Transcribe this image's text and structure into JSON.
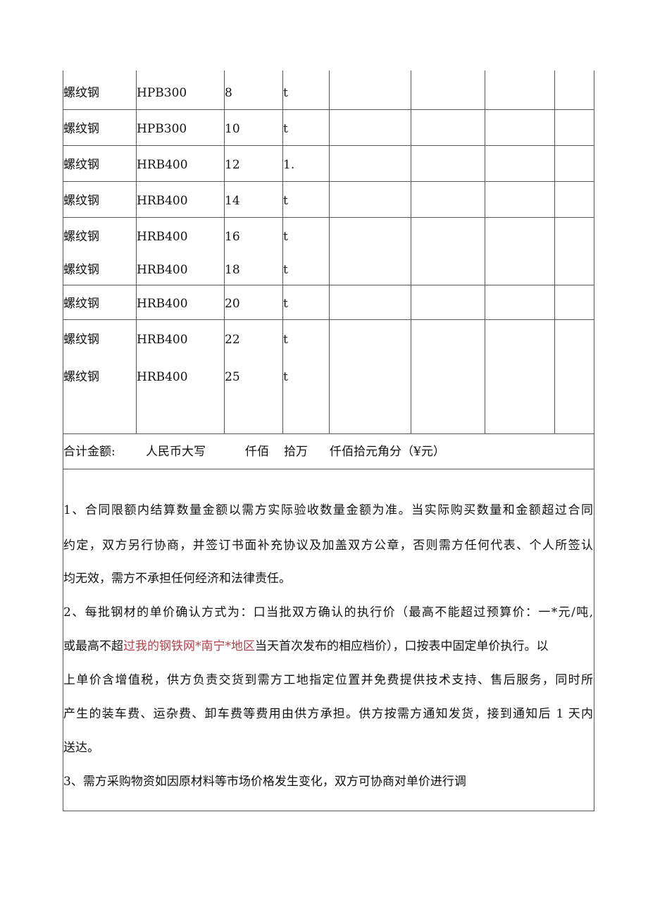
{
  "rows": [
    {
      "name": "螺纹钢",
      "grade": "HPB300",
      "spec": "8",
      "unit": "t"
    },
    {
      "name": "螺纹钢",
      "grade": "HPB300",
      "spec": "10",
      "unit": "t"
    },
    {
      "name": "螺纹钢",
      "grade": "HRB400",
      "spec": "12",
      "unit": "1."
    },
    {
      "name": "螺纹钢",
      "grade": "HRB400",
      "spec": "14",
      "unit": "t"
    },
    {
      "name": "螺纹钢",
      "grade": "HRB400",
      "spec": "16",
      "unit": "t"
    },
    {
      "name": "螺纹钢",
      "grade": "HRB400",
      "spec": "18",
      "unit": "t"
    },
    {
      "name": "螺纹钢",
      "grade": "HRB400",
      "spec": "20",
      "unit": "t"
    },
    {
      "name": "螺纹钢",
      "grade": "HRB400",
      "spec": "22",
      "unit": "t"
    },
    {
      "name": "螺纹钢",
      "grade": "HRB400",
      "spec": "25",
      "unit": "t"
    }
  ],
  "total": {
    "label": "合计金额:",
    "text": "人民币大写",
    "text2": "仟佰",
    "text3": "拾万",
    "text4": "仟佰拾元角分（¥元）"
  },
  "terms": {
    "l1": "1、合同限额内结算数量金额以需方实际验收数量金额为准。当实际购买数量和金额超过合同",
    "l2": "约定，双方另行协商，并签订书面补充协议及加盖双方公章，否则需方任何代表、个人所签认",
    "l3": "均无效，需方不承担任何经济和法律责任。",
    "l4": "2、每批钢材的单价确认方式为：口当批双方确认的执行价（最高不能超过预算价：一*元/吨,",
    "l5a": "或最高不超",
    "l5b": "过我的钢铁网*南宁*地区",
    "l5c": "当天首次发布的相应档价），口按表中固定单价执行。以",
    "l6": "上单价含增值税，供方负责交货到需方工地指定位置并免费提供技术支持、售后服务，同时所",
    "l7": "产生的装车费、运杂费、卸车费等费用由供方承担。供方按需方通知发货，接到通知后 1 天内",
    "l8": "送达。",
    "l9": "3、需方采购物资如因原材料等市场价格发生变化，双方可协商对单价进行调"
  },
  "colors": {
    "link": "#b0404a"
  }
}
